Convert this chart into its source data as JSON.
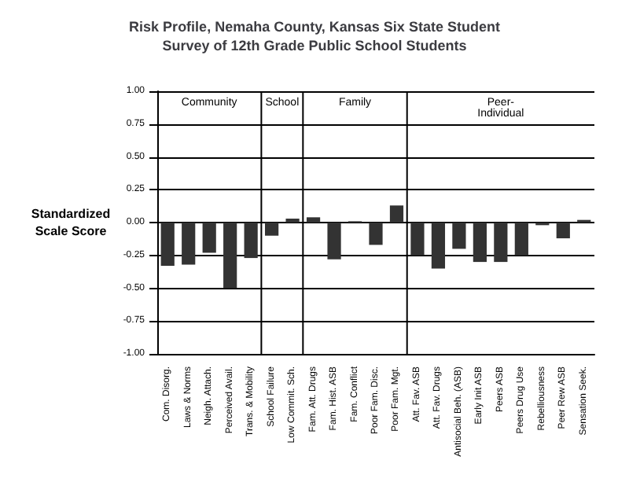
{
  "chart_data": {
    "type": "bar",
    "title": "Risk Profile, Nemaha County, Kansas Six State Student\nSurvey of 12th Grade Public School Students",
    "ylabel": "Standardized\nScale Score",
    "categories": [
      "Com. Disorg.",
      "Laws & Norms",
      "Neigh. Attach.",
      "Perceived Avail.",
      "Trans. & Mobility",
      "School Failure",
      "Low Commit. Sch.",
      "Fam. Att. Drugs",
      "Fam. Hist. ASB",
      "Fam. Conflict",
      "Poor Fam. Disc.",
      "Poor Fam. Mgt.",
      "Att. Fav. ASB",
      "Att. Fav. Drugs",
      "Antisocial Beh. (ASB)",
      "Early Init ASB",
      "Peers ASB",
      "Peers Drug Use",
      "Rebelliousness",
      "Peer Rew ASB",
      "Sensation Seek."
    ],
    "values": [
      -0.33,
      -0.32,
      -0.23,
      -0.5,
      -0.27,
      -0.1,
      0.03,
      0.04,
      -0.28,
      0.01,
      -0.17,
      0.13,
      -0.25,
      -0.35,
      -0.2,
      -0.3,
      -0.3,
      -0.25,
      -0.02,
      -0.12,
      0.02
    ],
    "color": "#333333",
    "ylim": [
      -1,
      1
    ],
    "yticks": [
      {
        "value": 1,
        "label": "1.00"
      },
      {
        "value": 0.75,
        "label": "0.75"
      },
      {
        "value": 0.5,
        "label": "0.50"
      },
      {
        "value": 0.25,
        "label": "0.25"
      },
      {
        "value": 0,
        "label": "0.00"
      },
      {
        "value": -0.25,
        "label": "-0.25"
      },
      {
        "value": -0.5,
        "label": "-0.50"
      },
      {
        "value": -0.75,
        "label": "-0.75"
      },
      {
        "value": -1,
        "label": "-1.00"
      }
    ],
    "grid": "y",
    "annotations": [
      "Community",
      "School",
      "Family",
      "Peer-\nIndividual"
    ]
  }
}
